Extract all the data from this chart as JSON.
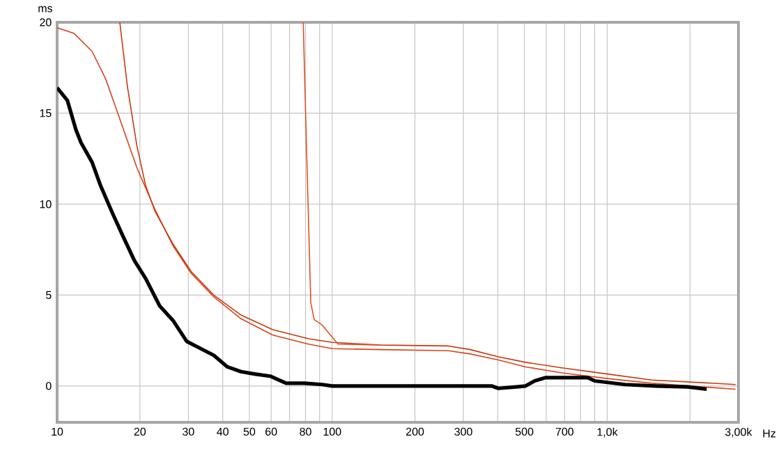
{
  "chart_data": {
    "type": "line",
    "ylabel": "ms",
    "xlabel": "Hz",
    "log": "x",
    "grid": true,
    "xlim": [
      10,
      3000
    ],
    "ylim": [
      -2,
      20
    ],
    "xticks": [
      10,
      20,
      30,
      40,
      50,
      60,
      {
        "value": 70,
        "label": null
      },
      80,
      {
        "value": 90,
        "label": null
      },
      100,
      200,
      300,
      {
        "value": 400,
        "label": null
      },
      500,
      {
        "value": 600,
        "label": null
      },
      700,
      {
        "value": 800,
        "label": null
      },
      {
        "value": 900,
        "label": null
      },
      {
        "value": 1000,
        "label": "1,0k"
      },
      {
        "value": 2000,
        "label": null
      },
      {
        "value": 3000,
        "label": "3,00k"
      }
    ],
    "yticks": [
      0,
      5,
      10,
      15,
      20
    ],
    "series": [
      {
        "color": "#d8441c",
        "x": [
          10,
          11.5,
          13.4,
          15.0,
          16.8,
          19.5,
          22.7,
          26.4,
          30.7,
          37.1,
          46.6,
          60.8,
          82,
          100,
          150,
          265,
          318,
          402,
          505,
          683,
          1000,
          1450,
          2930
        ],
        "values": [
          19.7,
          19.4,
          18.4,
          16.9,
          14.8,
          12.0,
          9.7,
          7.7,
          6.2,
          4.9,
          3.7,
          2.8,
          2.3,
          2.05,
          2.0,
          1.94,
          1.76,
          1.43,
          1.05,
          0.72,
          0.41,
          0.15,
          -0.18
        ]
      },
      {
        "color": "#c83810",
        "x": [
          16.9,
          18,
          19.5,
          21,
          22.7,
          26.4,
          30.7,
          37.1,
          46.6,
          60.8,
          82,
          100,
          150,
          265,
          318,
          402,
          505,
          683,
          1000,
          1450,
          2930
        ],
        "values": [
          20,
          16.5,
          13.2,
          11.0,
          9.6,
          7.8,
          6.3,
          5.0,
          3.9,
          3.1,
          2.6,
          2.4,
          2.25,
          2.2,
          2.0,
          1.6,
          1.3,
          1.0,
          0.66,
          0.33,
          0.08
        ]
      },
      {
        "color": "#e0501c",
        "x": [
          78.5,
          80.5,
          83.6,
          86,
          92,
          105,
          150
        ],
        "values": [
          20,
          13.6,
          4.6,
          3.65,
          3.35,
          2.3,
          2.25
        ]
      },
      {
        "color": "#000000",
        "x": [
          10,
          10.9,
          11.7,
          12.2,
          13.4,
          14.4,
          15.9,
          17.4,
          19.1,
          21.0,
          23.6,
          26.4,
          29.6,
          33.1,
          37.1,
          41.6,
          46.6,
          52.2,
          59.5,
          68,
          79,
          92,
          100,
          150,
          380,
          402,
          468,
          505,
          545,
          598,
          850,
          900,
          1160,
          1500,
          1960,
          2300
        ],
        "values": [
          16.4,
          15.7,
          14.1,
          13.4,
          12.3,
          11.0,
          9.5,
          8.2,
          6.9,
          5.9,
          4.4,
          3.6,
          2.45,
          2.07,
          1.69,
          1.05,
          0.79,
          0.66,
          0.54,
          0.15,
          0.15,
          0.08,
          0,
          0,
          0,
          -0.13,
          -0.05,
          0,
          0.28,
          0.46,
          0.46,
          0.28,
          0.08,
          0,
          -0.05,
          -0.18
        ]
      }
    ]
  }
}
